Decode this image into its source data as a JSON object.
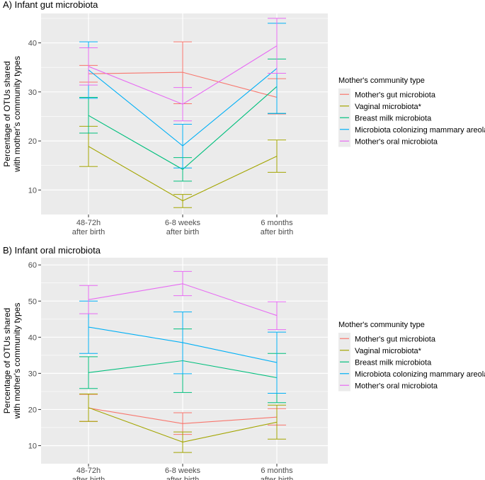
{
  "colors": {
    "panel_bg": "#EBEBEB",
    "grid": "#FFFFFF",
    "tick": "#4D4D4D",
    "series": [
      "#F8766D",
      "#A3A500",
      "#00BF7D",
      "#00B0F6",
      "#E76BF3"
    ]
  },
  "legend_title": "Mother's community type",
  "x_tick_labels": [
    {
      "line1": "48-72h",
      "line2": "after birth"
    },
    {
      "line1": "6-8 weeks",
      "line2": "after birth"
    },
    {
      "line1": "6 months",
      "line2": "after birth"
    }
  ],
  "chart_data": [
    {
      "type": "line",
      "title": "A) Infant gut microbiota",
      "ylabel_line1": "Percentage of OTUs shared",
      "ylabel_line2": "with mother's community types",
      "ylim": [
        5,
        46
      ],
      "yticks": [
        10,
        20,
        30,
        40
      ],
      "categories": [
        "48-72h after birth",
        "6-8 weeks after birth",
        "6 months after birth"
      ],
      "series": [
        {
          "name": "Mother's gut microbiota",
          "values": [
            33.7,
            34.0,
            28.9
          ],
          "lower": [
            32.0,
            27.6,
            25.5
          ],
          "upper": [
            35.4,
            40.2,
            32.7
          ]
        },
        {
          "name": "Vaginal microbiota*",
          "values": [
            18.9,
            7.8,
            16.9
          ],
          "lower": [
            14.8,
            6.4,
            13.6
          ],
          "upper": [
            23.0,
            9.1,
            20.2
          ]
        },
        {
          "name": "Breast milk microbiota",
          "values": [
            25.2,
            14.2,
            31.1
          ],
          "lower": [
            21.6,
            11.8,
            25.6
          ],
          "upper": [
            28.9,
            16.6,
            36.7
          ]
        },
        {
          "name": "Microbiota colonizing mammary areola",
          "values": [
            34.5,
            19.0,
            34.8
          ],
          "lower": [
            28.7,
            14.5,
            25.6
          ],
          "upper": [
            40.2,
            23.4,
            44.0
          ]
        },
        {
          "name": "Mother's oral microbiota",
          "values": [
            35.2,
            27.5,
            39.4
          ],
          "lower": [
            31.4,
            24.1,
            33.8
          ],
          "upper": [
            39.0,
            30.9,
            45.0
          ]
        }
      ]
    },
    {
      "type": "line",
      "title": "B) Infant oral microbiota",
      "ylabel_line1": "Percentage of OTUs shared",
      "ylabel_line2": "with mother's community types",
      "ylim": [
        5,
        62
      ],
      "yticks": [
        10,
        20,
        30,
        40,
        50,
        60
      ],
      "categories": [
        "48-72h after birth",
        "6-8 weeks after birth",
        "6 months after birth"
      ],
      "series": [
        {
          "name": "Mother's gut microbiota",
          "values": [
            20.4,
            16.1,
            17.9
          ],
          "lower": [
            16.7,
            13.1,
            15.7
          ],
          "upper": [
            24.2,
            19.1,
            20.2
          ]
        },
        {
          "name": "Vaginal microbiota*",
          "values": [
            20.5,
            11.0,
            16.5
          ],
          "lower": [
            16.7,
            8.1,
            11.8
          ],
          "upper": [
            24.3,
            13.8,
            21.2
          ]
        },
        {
          "name": "Breast milk microbiota",
          "values": [
            30.2,
            33.5,
            28.8
          ],
          "lower": [
            25.8,
            24.7,
            21.9
          ],
          "upper": [
            34.6,
            42.3,
            35.5
          ]
        },
        {
          "name": "Microbiota colonizing mammary areola",
          "values": [
            42.8,
            38.5,
            33.0
          ],
          "lower": [
            35.5,
            29.9,
            24.5
          ],
          "upper": [
            50.0,
            47.0,
            41.4
          ]
        },
        {
          "name": "Mother's oral microbiota",
          "values": [
            50.4,
            54.8,
            46.0
          ],
          "lower": [
            46.5,
            51.5,
            42.1
          ],
          "upper": [
            54.3,
            58.2,
            49.8
          ]
        }
      ]
    }
  ]
}
